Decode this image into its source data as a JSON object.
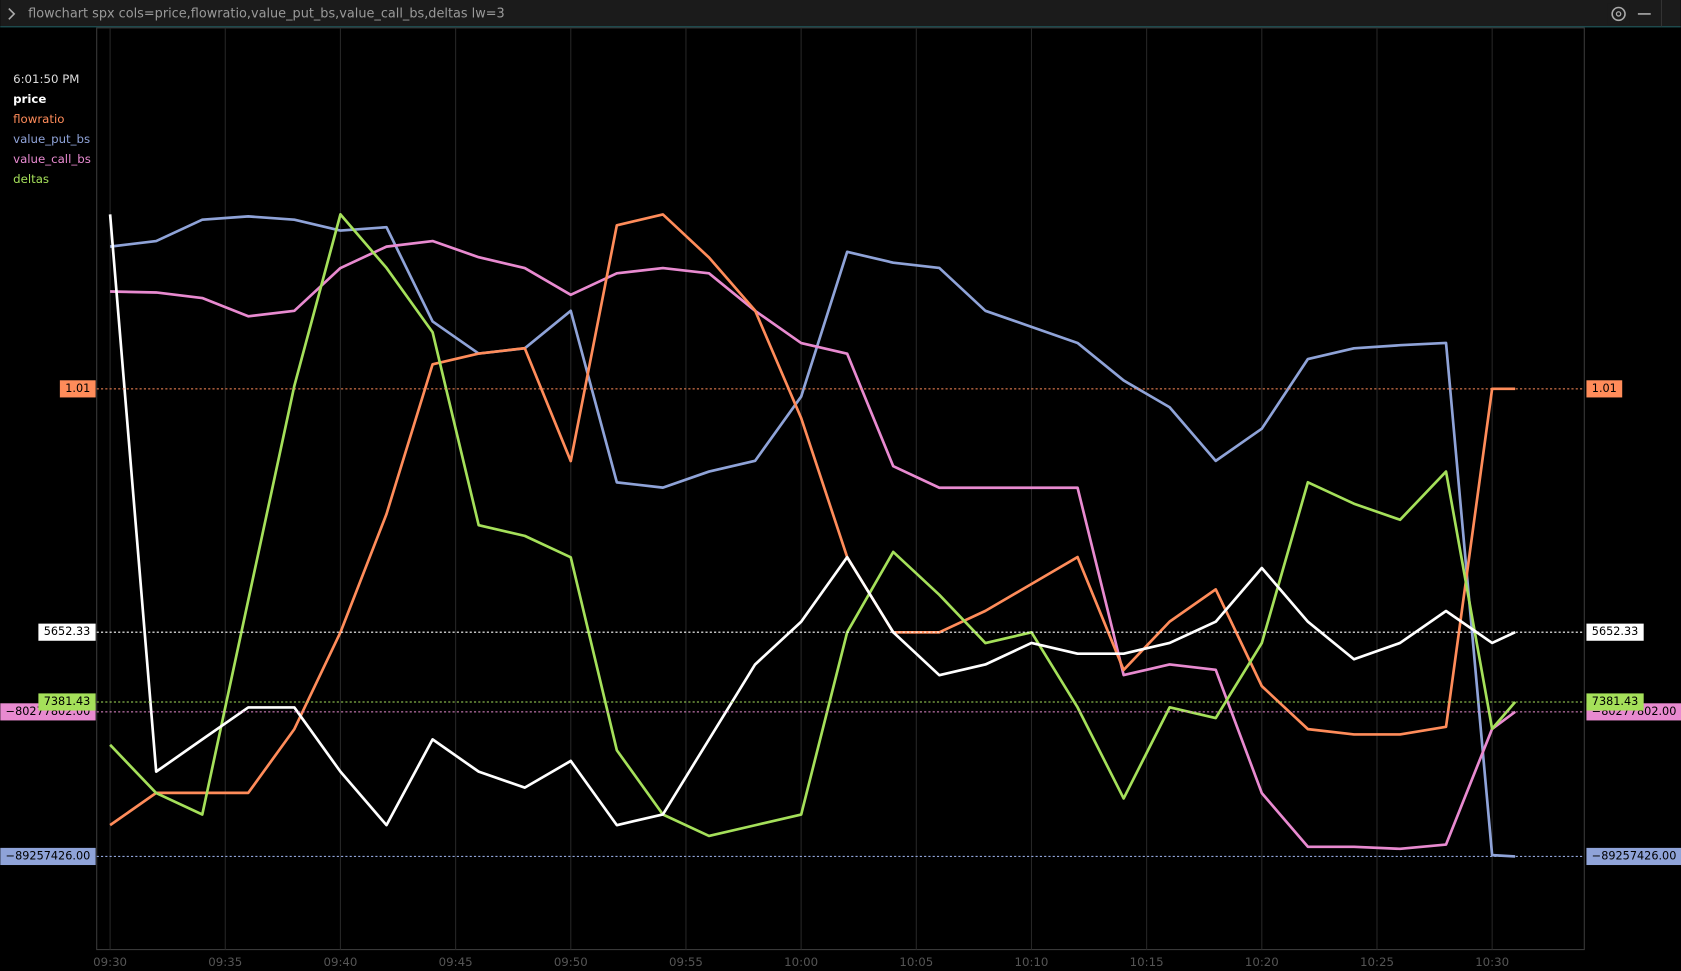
{
  "chart_data": {
    "type": "line",
    "title": "flowchart spx cols=price,flowratio,value_put_bs,value_call_bs,deltas lw=3",
    "timestamp": "6:01:50 PM",
    "x": [
      "09:30",
      "09:32",
      "09:34",
      "09:36",
      "09:38",
      "09:40",
      "09:42",
      "09:44",
      "09:46",
      "09:48",
      "09:50",
      "09:52",
      "09:54",
      "09:56",
      "09:58",
      "10:00",
      "10:02",
      "10:04",
      "10:06",
      "10:08",
      "10:10",
      "10:12",
      "10:14",
      "10:16",
      "10:18",
      "10:20",
      "10:22",
      "10:24",
      "10:26",
      "10:28",
      "10:30",
      "10:31"
    ],
    "xlim": [
      "09:29",
      "10:34"
    ],
    "xticks": [
      "09:30",
      "09:35",
      "09:40",
      "09:45",
      "09:50",
      "09:55",
      "10:00",
      "10:05",
      "10:10",
      "10:15",
      "10:20",
      "10:25",
      "10:30"
    ],
    "grid": true,
    "series": [
      {
        "name": "price",
        "color": "#ffffff",
        "ylim": [
          5645,
          5666
        ],
        "label": "5652.33",
        "values": [
          5665.93,
          5647.79,
          5648.84,
          5649.88,
          5649.88,
          5647.79,
          5646.05,
          5648.84,
          5647.79,
          5647.27,
          5648.14,
          5646.05,
          5646.4,
          5648.84,
          5651.28,
          5652.67,
          5654.77,
          5652.33,
          5650.93,
          5651.28,
          5651.98,
          5651.63,
          5651.63,
          5651.98,
          5652.67,
          5654.42,
          5652.67,
          5651.45,
          5651.98,
          5653.02,
          5651.98,
          5652.33
        ]
      },
      {
        "name": "flowratio",
        "color": "#ff8c5a",
        "ylim": [
          0.4,
          1.24
        ],
        "label": "1.01",
        "values": [
          0.442,
          0.484,
          0.484,
          0.484,
          0.567,
          0.693,
          0.847,
          1.042,
          1.056,
          1.063,
          0.916,
          1.223,
          1.237,
          1.181,
          1.112,
          0.972,
          0.791,
          0.693,
          0.693,
          0.721,
          0.756,
          0.791,
          0.644,
          0.707,
          0.749,
          0.623,
          0.567,
          0.56,
          0.56,
          0.57,
          1.01,
          1.01
        ]
      },
      {
        "name": "value_put_bs",
        "color": "#8fa3d8",
        "ylim": [
          -89300000,
          -60000000
        ],
        "label": "−89257426.00",
        "values": [
          -61560000,
          -61310000,
          -60340000,
          -60190000,
          -60340000,
          -60830000,
          -60680000,
          -64960000,
          -66420000,
          -66180000,
          -64480000,
          -72270000,
          -72510000,
          -71780000,
          -71290000,
          -68370000,
          -61800000,
          -62290000,
          -62530000,
          -64480000,
          -65210000,
          -65940000,
          -67640000,
          -68860000,
          -71290000,
          -69830000,
          -66670000,
          -66180000,
          -66040000,
          -65940000,
          -89200000,
          -89257426
        ]
      },
      {
        "name": "value_call_bs",
        "color": "#e88ad0",
        "ylim": [
          -89300000,
          -49300000
        ],
        "label": "−80277802.00",
        "values": [
          -54220000,
          -54280000,
          -54620000,
          -55750000,
          -55410000,
          -52760000,
          -51430000,
          -51090000,
          -52090000,
          -52760000,
          -54420000,
          -53090000,
          -52760000,
          -53090000,
          -55410000,
          -57410000,
          -58070000,
          -65050000,
          -66380000,
          -66380000,
          -66380000,
          -66380000,
          -78000000,
          -77340000,
          -77670000,
          -85310000,
          -88640000,
          -88640000,
          -88770000,
          -88500000,
          -81330000,
          -80277802
        ]
      },
      {
        "name": "deltas",
        "color": "#a5e05a",
        "ylim": [
          -5000,
          46400
        ],
        "label": "7381.43",
        "values": [
          3965,
          123,
          -1585,
          15491,
          32567,
          46228,
          41959,
          36836,
          21468,
          20614,
          18906,
          3538,
          -1585,
          -3292,
          -2439,
          -1585,
          12930,
          19333,
          15918,
          12076,
          12930,
          6953,
          -304,
          6953,
          6099,
          12076,
          24883,
          23175,
          21895,
          25737,
          5246,
          7381.43
        ]
      }
    ]
  }
}
